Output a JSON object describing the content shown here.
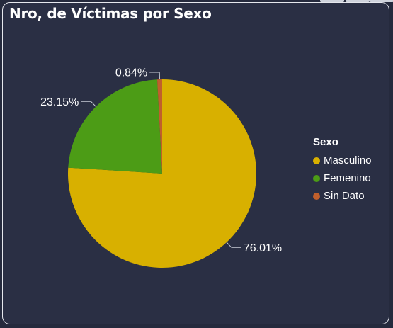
{
  "title": "Nro, de Víctimas por Sexo",
  "chart_data": {
    "type": "pie",
    "legend_title": "Sexo",
    "legend_position": "right",
    "categories": [
      "Masculino",
      "Femenino",
      "Sin Dato"
    ],
    "values": [
      76.01,
      23.15,
      0.84
    ],
    "labels": [
      "76.01%",
      "23.15%",
      "0.84%"
    ],
    "colors": [
      "#d8b000",
      "#4c9c16",
      "#c05f2c"
    ]
  }
}
